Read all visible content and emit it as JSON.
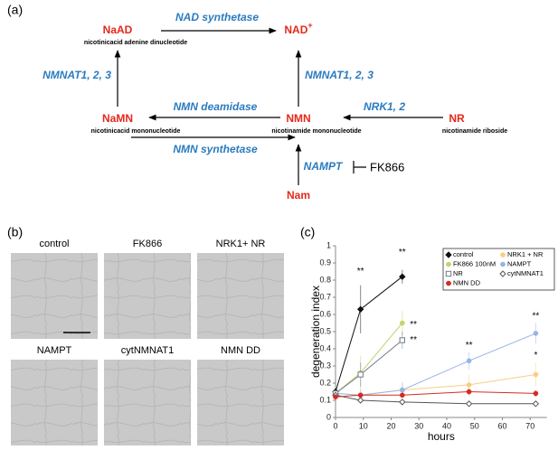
{
  "panel_labels": [
    "(a)",
    "(b)",
    "(c)"
  ],
  "diagram": {
    "nodes": [
      {
        "label": "NaAD",
        "sublabel": "nicotinicacid adenine dinucleotide"
      },
      {
        "label": "NAD",
        "superscript": "+"
      },
      {
        "label": "NaMN",
        "sublabel": "nicotinicacid mononucleotide"
      },
      {
        "label": "NMN",
        "sublabel": "nicotinamide mononucleotide"
      },
      {
        "label": "NR",
        "sublabel": "nicotinamide riboside"
      },
      {
        "label": "Nam"
      }
    ],
    "enzymes": [
      "NAD synthetase",
      "NMNAT1, 2, 3",
      "NMNAT1, 2, 3",
      "NMN deamidase",
      "NRK1, 2",
      "NMN synthetase",
      "NAMPT"
    ],
    "inhibitor": "FK866"
  },
  "images": [
    "control",
    "FK866",
    "NRK1+ NR",
    "NAMPT",
    "cytNMNAT1",
    "NMN DD"
  ],
  "chart_data": {
    "type": "line",
    "x_label": "hours",
    "y_label": "degeneration index",
    "x": [
      0,
      9,
      24,
      48,
      72
    ],
    "xlim": [
      0,
      76
    ],
    "xticks": [
      0,
      10,
      20,
      30,
      40,
      50,
      60,
      70
    ],
    "ylim": [
      0,
      1
    ],
    "yticks": [
      0,
      0.1,
      0.2,
      0.3,
      0.4,
      0.5,
      0.6,
      0.7,
      0.8,
      0.9,
      1
    ],
    "legend": "top-right",
    "series": [
      {
        "name": "control",
        "color": "#111111",
        "marker": "diamond",
        "values": [
          0.15,
          0.63,
          0.82,
          null,
          null
        ],
        "errors": [
          0.02,
          0.14,
          0.04,
          null,
          null
        ]
      },
      {
        "name": "NRK1 + NR",
        "color": "#f7cf84",
        "marker": "circle",
        "values": [
          0.14,
          0.13,
          0.16,
          0.19,
          0.25
        ],
        "errors": [
          0.02,
          0.03,
          0.05,
          0.06,
          0.07
        ]
      },
      {
        "name": "FK866 100nM",
        "color": "#c6d16b",
        "marker": "circle",
        "values": [
          0.14,
          0.26,
          0.55,
          null,
          null
        ],
        "errors": [
          0.02,
          0.1,
          0.07,
          null,
          null
        ]
      },
      {
        "name": "NAMPT",
        "color": "#97b4e6",
        "marker": "circle",
        "values": [
          0.14,
          0.13,
          0.16,
          0.33,
          0.49
        ],
        "errors": [
          0.02,
          0.03,
          0.04,
          0.05,
          0.06
        ]
      },
      {
        "name": "NR",
        "color": "#6f7c8c",
        "marker": "square",
        "values": [
          0.14,
          0.25,
          0.45,
          null,
          null
        ],
        "errors": [
          0.02,
          0.07,
          0.05,
          null,
          null
        ]
      },
      {
        "name": "cytNMNAT1",
        "color": "#555555",
        "marker": "open-diamond",
        "values": [
          0.13,
          0.1,
          0.09,
          0.08,
          0.08
        ],
        "errors": [
          0.01,
          0.01,
          0.01,
          0.01,
          0.01
        ]
      },
      {
        "name": "NMN DD",
        "color": "#d62b22",
        "marker": "circle",
        "values": [
          0.12,
          0.13,
          0.13,
          0.15,
          0.14
        ],
        "errors": [
          0.01,
          0.01,
          0.01,
          0.02,
          0.02
        ]
      }
    ],
    "annotations": [
      {
        "text": "**",
        "x": 9,
        "y": 0.85
      },
      {
        "text": "**",
        "x": 24,
        "y": 0.96
      },
      {
        "text": "**",
        "x": 28,
        "y": 0.54
      },
      {
        "text": "**",
        "x": 28,
        "y": 0.45
      },
      {
        "text": "**",
        "x": 48,
        "y": 0.42
      },
      {
        "text": "**",
        "x": 72,
        "y": 0.59
      },
      {
        "text": "*",
        "x": 72,
        "y": 0.36
      }
    ]
  }
}
